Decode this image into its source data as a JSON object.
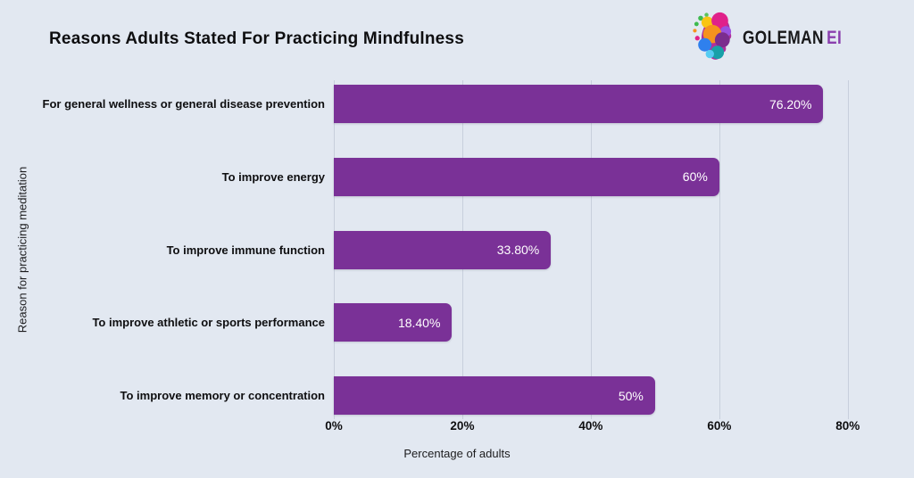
{
  "header": {
    "title": "Reasons Adults Stated For Practicing Mindfulness",
    "logo": {
      "primary": "GOLEMAN",
      "accent": "EI",
      "icon": "colorful-head-brain-icon"
    }
  },
  "chart_data": {
    "type": "bar",
    "orientation": "horizontal",
    "title": "Reasons Adults Stated For Practicing Mindfulness",
    "categories": [
      "For general wellness or general disease prevention",
      "To improve energy",
      "To improve immune function",
      "To improve athletic or sports performance",
      "To improve memory or concentration"
    ],
    "values": [
      76.2,
      60,
      33.8,
      18.4,
      50
    ],
    "value_labels": [
      "76.20%",
      "60%",
      "33.80%",
      "18.40%",
      "50%"
    ],
    "xlabel": "Percentage of adults",
    "ylabel": "Reason for practicing meditation",
    "x_ticks": [
      {
        "value": 0,
        "label": "0%"
      },
      {
        "value": 20,
        "label": "20%"
      },
      {
        "value": 40,
        "label": "40%"
      },
      {
        "value": 60,
        "label": "60%"
      },
      {
        "value": 80,
        "label": "80%"
      }
    ],
    "xlim": [
      0,
      84.2
    ],
    "grid": true,
    "legend": false,
    "bar_color": "#7a3197",
    "value_label_color": "#ffffff"
  },
  "colors": {
    "background": "#e2e8f1",
    "gridline": "#c8cfdc",
    "text": "#0e0e10",
    "logo_accent": "#8a3fae"
  }
}
